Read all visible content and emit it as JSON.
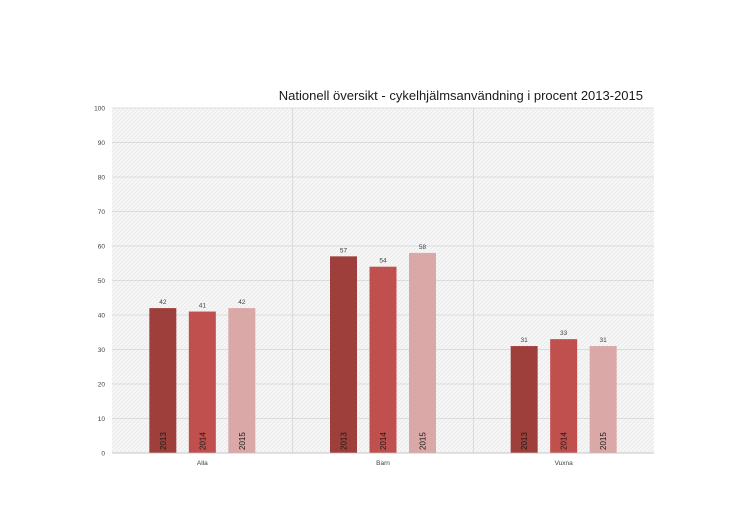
{
  "chart_data": {
    "type": "bar",
    "title": "Nationell översikt - cykelhjälmsanvändning i procent 2013-2015",
    "xlabel": "",
    "ylabel": "",
    "categories": [
      "Alla",
      "Barn",
      "Vuxna"
    ],
    "series": [
      {
        "label": "2013",
        "values": [
          42,
          57,
          31
        ],
        "color": "#9e3f3c"
      },
      {
        "label": "2014",
        "values": [
          41,
          54,
          33
        ],
        "color": "#c0504d"
      },
      {
        "label": "2015",
        "values": [
          42,
          58,
          31
        ],
        "color": "#d9a8a7"
      }
    ],
    "ylim": [
      0,
      100
    ],
    "yticks": [
      "0",
      "10",
      "20",
      "30",
      "40",
      "50",
      "60",
      "70",
      "80",
      "90",
      "100"
    ],
    "grid": true,
    "legend": "none"
  }
}
